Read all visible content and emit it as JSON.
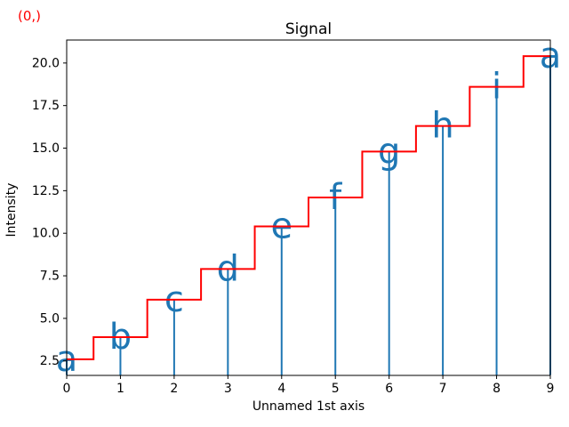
{
  "chart_data": {
    "type": "stem",
    "title": "Signal",
    "xlabel": "Unnamed 1st axis",
    "ylabel": "Intensity",
    "corner_annotation": "(0,)",
    "x": [
      0,
      1,
      2,
      3,
      4,
      5,
      6,
      7,
      8,
      9
    ],
    "values": [
      2.6,
      3.9,
      6.1,
      7.9,
      10.4,
      12.1,
      14.8,
      16.3,
      18.6,
      20.4
    ],
    "point_labels": [
      "a",
      "b",
      "c",
      "d",
      "e",
      "f",
      "g",
      "h",
      "i",
      "a"
    ],
    "overlay_step_line": {
      "style": "steps-mid",
      "color": "#ff0000"
    },
    "xticklabels": [
      "0",
      "1",
      "2",
      "3",
      "4",
      "5",
      "6",
      "7",
      "8",
      "9"
    ],
    "yticklabels": [
      "2.5",
      "5.0",
      "7.5",
      "10.0",
      "12.5",
      "15.0",
      "17.5",
      "20.0"
    ],
    "xlim": [
      0,
      9
    ],
    "ylim": [
      1.65,
      21.35
    ],
    "grid": false,
    "legend": false,
    "colors": {
      "stem": "#1f77b4",
      "point_label": "#1f77b4",
      "step_line": "#ff0000",
      "annotation": "#ff0000",
      "axis": "#000000",
      "background": "#ffffff"
    }
  }
}
